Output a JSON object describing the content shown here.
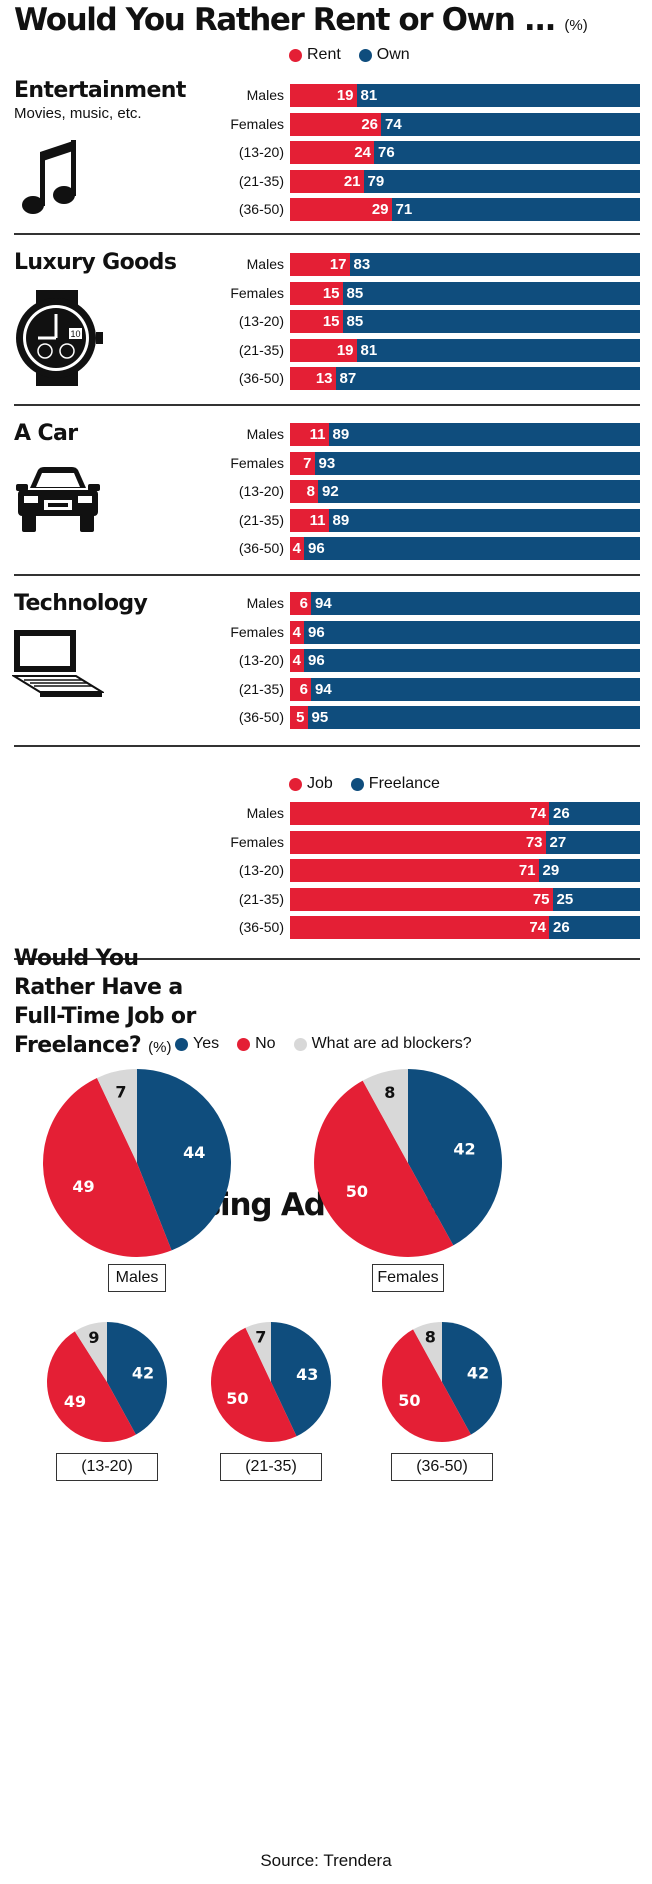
{
  "title": "Would You Rather Rent or Own ...",
  "title_unit": "(%)",
  "colors": {
    "red": "#e41f35",
    "blue": "#0f4d7d",
    "gray": "#d8d8d8"
  },
  "legend_rent_own": [
    {
      "label": "Rent",
      "color": "#e41f35"
    },
    {
      "label": "Own",
      "color": "#0f4d7d"
    }
  ],
  "rent_own_sections": [
    {
      "title": "Entertainment",
      "subtitle": "Movies, music, etc.",
      "icon": "music-note-icon",
      "rows": [
        {
          "label": "Males",
          "a": 19,
          "b": 81
        },
        {
          "label": "Females",
          "a": 26,
          "b": 74
        },
        {
          "label": "(13-20)",
          "a": 24,
          "b": 76
        },
        {
          "label": "(21-35)",
          "a": 21,
          "b": 79
        },
        {
          "label": "(36-50)",
          "a": 29,
          "b": 71
        }
      ]
    },
    {
      "title": "Luxury Goods",
      "subtitle": "",
      "icon": "watch-icon",
      "watch_date": "10",
      "rows": [
        {
          "label": "Males",
          "a": 17,
          "b": 83
        },
        {
          "label": "Females",
          "a": 15,
          "b": 85
        },
        {
          "label": "(13-20)",
          "a": 15,
          "b": 85
        },
        {
          "label": "(21-35)",
          "a": 19,
          "b": 81
        },
        {
          "label": "(36-50)",
          "a": 13,
          "b": 87
        }
      ]
    },
    {
      "title": "A Car",
      "subtitle": "",
      "icon": "car-icon",
      "rows": [
        {
          "label": "Males",
          "a": 11,
          "b": 89
        },
        {
          "label": "Females",
          "a": 7,
          "b": 93
        },
        {
          "label": "(13-20)",
          "a": 8,
          "b": 92
        },
        {
          "label": "(21-35)",
          "a": 11,
          "b": 89
        },
        {
          "label": "(36-50)",
          "a": 4,
          "b": 96
        }
      ]
    },
    {
      "title": "Technology",
      "subtitle": "",
      "icon": "laptop-icon",
      "rows": [
        {
          "label": "Males",
          "a": 6,
          "b": 94
        },
        {
          "label": "Females",
          "a": 4,
          "b": 96
        },
        {
          "label": "(13-20)",
          "a": 4,
          "b": 96
        },
        {
          "label": "(21-35)",
          "a": 6,
          "b": 94
        },
        {
          "label": "(36-50)",
          "a": 5,
          "b": 95
        }
      ]
    }
  ],
  "job_freelance": {
    "title": "Would You Rather Have a Full-Time Job or Freelance?",
    "title_unit": "(%)",
    "legend": [
      {
        "label": "Job",
        "color": "#e41f35"
      },
      {
        "label": "Freelance",
        "color": "#0f4d7d"
      }
    ],
    "rows": [
      {
        "label": "Males",
        "a": 74,
        "b": 26
      },
      {
        "label": "Females",
        "a": 73,
        "b": 27
      },
      {
        "label": "(13-20)",
        "a": 71,
        "b": 29
      },
      {
        "label": "(21-35)",
        "a": 75,
        "b": 25
      },
      {
        "label": "(36-50)",
        "a": 74,
        "b": 26
      }
    ]
  },
  "ad_blockers": {
    "title": "Using Ad Blockers",
    "legend": [
      {
        "label": "Yes",
        "color": "#0f4d7d"
      },
      {
        "label": "No",
        "color": "#e41f35"
      },
      {
        "label": "What are ad blockers?",
        "color": "#d8d8d8"
      }
    ],
    "pies": [
      {
        "label": "Males",
        "yes": 44,
        "no": 49,
        "unknown": 7
      },
      {
        "label": "Females",
        "yes": 42,
        "no": 50,
        "unknown": 8
      },
      {
        "label": "(13-20)",
        "yes": 42,
        "no": 49,
        "unknown": 9
      },
      {
        "label": "(21-35)",
        "yes": 43,
        "no": 50,
        "unknown": 7
      },
      {
        "label": "(36-50)",
        "yes": 42,
        "no": 50,
        "unknown": 8
      }
    ]
  },
  "source": "Source: Trendera",
  "chart_data": [
    {
      "type": "bar",
      "title": "Would You Rather Rent or Own ...",
      "unit": "(%)",
      "stacked": true,
      "group": "Entertainment",
      "categories": [
        "Males",
        "Females",
        "(13-20)",
        "(21-35)",
        "(36-50)"
      ],
      "series": [
        {
          "name": "Rent",
          "values": [
            19,
            26,
            24,
            21,
            29
          ]
        },
        {
          "name": "Own",
          "values": [
            81,
            74,
            76,
            79,
            71
          ]
        }
      ]
    },
    {
      "type": "bar",
      "stacked": true,
      "group": "Luxury Goods",
      "categories": [
        "Males",
        "Females",
        "(13-20)",
        "(21-35)",
        "(36-50)"
      ],
      "series": [
        {
          "name": "Rent",
          "values": [
            17,
            15,
            15,
            19,
            13
          ]
        },
        {
          "name": "Own",
          "values": [
            83,
            85,
            85,
            81,
            87
          ]
        }
      ]
    },
    {
      "type": "bar",
      "stacked": true,
      "group": "A Car",
      "categories": [
        "Males",
        "Females",
        "(13-20)",
        "(21-35)",
        "(36-50)"
      ],
      "series": [
        {
          "name": "Rent",
          "values": [
            11,
            7,
            8,
            11,
            4
          ]
        },
        {
          "name": "Own",
          "values": [
            89,
            93,
            92,
            89,
            96
          ]
        }
      ]
    },
    {
      "type": "bar",
      "stacked": true,
      "group": "Technology",
      "categories": [
        "Males",
        "Females",
        "(13-20)",
        "(21-35)",
        "(36-50)"
      ],
      "series": [
        {
          "name": "Rent",
          "values": [
            6,
            4,
            4,
            6,
            5
          ]
        },
        {
          "name": "Own",
          "values": [
            94,
            96,
            96,
            94,
            95
          ]
        }
      ]
    },
    {
      "type": "bar",
      "stacked": true,
      "title": "Would You Rather Have a Full-Time Job or Freelance?",
      "unit": "(%)",
      "categories": [
        "Males",
        "Females",
        "(13-20)",
        "(21-35)",
        "(36-50)"
      ],
      "series": [
        {
          "name": "Job",
          "values": [
            74,
            73,
            71,
            75,
            74
          ]
        },
        {
          "name": "Freelance",
          "values": [
            26,
            27,
            29,
            25,
            26
          ]
        }
      ]
    },
    {
      "type": "pie",
      "title": "Using Ad Blockers",
      "categories": [
        "Males",
        "Females",
        "(13-20)",
        "(21-35)",
        "(36-50)"
      ],
      "series": [
        {
          "name": "Yes",
          "values": [
            44,
            42,
            42,
            43,
            42
          ]
        },
        {
          "name": "No",
          "values": [
            49,
            50,
            49,
            50,
            50
          ]
        },
        {
          "name": "What are ad blockers?",
          "values": [
            7,
            8,
            9,
            7,
            8
          ]
        }
      ]
    }
  ]
}
